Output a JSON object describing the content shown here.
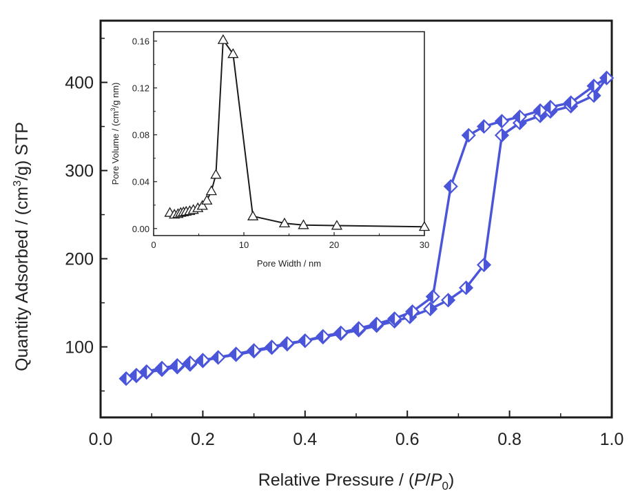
{
  "chart_data": [
    {
      "id": "main",
      "type": "scatter",
      "xlabel": "Relative Pressure / (P/P0)",
      "xlabel_parts": {
        "prefix": "Relative Pressure / (",
        "p": "P",
        "slash": "/",
        "p0": "P",
        "sub0": "0",
        "suffix": ")"
      },
      "ylabel": "Quantity Adsorbed / (cm3/g) STP",
      "ylabel_parts": {
        "prefix": "Quantity Adsorbed / (cm",
        "sup": "3",
        "suffix": "/g) STP"
      },
      "xlim": [
        0.0,
        1.0
      ],
      "ylim": [
        20,
        470
      ],
      "xticks": [
        0.0,
        0.2,
        0.4,
        0.6,
        0.8,
        1.0
      ],
      "xtick_labels": [
        "0.0",
        "0.2",
        "0.4",
        "0.6",
        "0.8",
        "1.0"
      ],
      "yticks": [
        100,
        200,
        300,
        400
      ],
      "ytick_labels": [
        "100",
        "200",
        "300",
        "400"
      ],
      "grid": false,
      "marker_color": "#4a55d9",
      "series": [
        {
          "marker": "diamond-right-filled",
          "x": [
            0.05,
            0.07,
            0.09,
            0.12,
            0.15,
            0.175,
            0.2,
            0.23,
            0.265,
            0.3,
            0.335,
            0.365,
            0.4,
            0.435,
            0.47,
            0.505,
            0.54,
            0.575,
            0.605,
            0.645,
            0.68,
            0.715,
            0.75,
            0.785,
            0.82,
            0.86,
            0.88,
            0.92,
            0.965,
            0.99
          ],
          "y": [
            64,
            67,
            71,
            74,
            77,
            80,
            84,
            88,
            91,
            95,
            99,
            103,
            107,
            111,
            115,
            119,
            124,
            129,
            134,
            143,
            153,
            167,
            193,
            340,
            354,
            362,
            367,
            373,
            385,
            405
          ]
        },
        {
          "marker": "diamond-left-filled",
          "x": [
            0.99,
            0.965,
            0.92,
            0.88,
            0.86,
            0.82,
            0.785,
            0.75,
            0.72,
            0.685,
            0.65,
            0.61,
            0.575,
            0.54,
            0.505,
            0.47,
            0.435,
            0.4,
            0.365,
            0.335,
            0.3,
            0.265,
            0.23,
            0.2,
            0.175,
            0.15,
            0.12,
            0.09,
            0.07,
            0.05
          ],
          "y": [
            405,
            396,
            377,
            372,
            368,
            361,
            356,
            350,
            340,
            282,
            157,
            140,
            132,
            126,
            121,
            116,
            112,
            107,
            104,
            100,
            96,
            92,
            88,
            85,
            82,
            79,
            76,
            72,
            68,
            64
          ]
        }
      ]
    },
    {
      "id": "inset",
      "type": "line",
      "xlabel": "Pore Width / nm",
      "ylabel": "Pore Volume / (cm3/g nm)",
      "ylabel_parts": {
        "prefix": "Pore Volume / (cm",
        "sup": "3",
        "suffix": "/g nm)"
      },
      "xlim": [
        0,
        30
      ],
      "ylim": [
        -0.006,
        0.168
      ],
      "xticks": [
        0,
        10,
        20,
        30
      ],
      "xtick_labels": [
        "0",
        "10",
        "20",
        "30"
      ],
      "yticks": [
        0.0,
        0.04,
        0.08,
        0.12,
        0.16
      ],
      "ytick_labels": [
        "0.00",
        "0.04",
        "0.08",
        "0.12",
        "0.16"
      ],
      "grid": false,
      "marker": "triangle-open",
      "x": [
        1.8,
        2.3,
        2.7,
        3.0,
        3.3,
        3.6,
        4.0,
        4.4,
        4.9,
        5.4,
        5.9,
        6.4,
        6.9,
        7.7,
        8.8,
        11.0,
        14.5,
        16.6,
        20.3,
        30.0
      ],
      "y": [
        0.0135,
        0.012,
        0.0125,
        0.0135,
        0.014,
        0.0145,
        0.015,
        0.016,
        0.0175,
        0.0195,
        0.024,
        0.032,
        0.046,
        0.161,
        0.149,
        0.0105,
        0.0045,
        0.003,
        0.0025,
        0.0015
      ]
    }
  ]
}
